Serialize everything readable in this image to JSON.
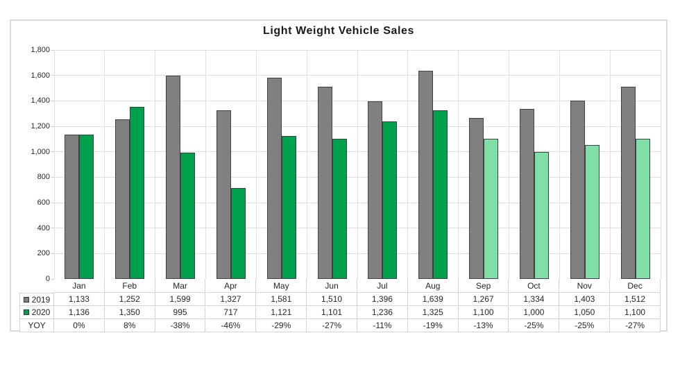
{
  "chart": {
    "border_color": "#dcdcdc",
    "grid_color": "#dedede",
    "axis_text_color": "#262626",
    "bar_border_color": "#404040"
  },
  "chart_data": {
    "type": "bar",
    "title": "Light Weight Vehicle Sales",
    "categories": [
      "Jan",
      "Feb",
      "Mar",
      "Apr",
      "May",
      "Jun",
      "Jul",
      "Aug",
      "Sep",
      "Oct",
      "Nov",
      "Dec"
    ],
    "series": [
      {
        "name": "2019",
        "color": "#808080",
        "values": [
          1133,
          1252,
          1599,
          1327,
          1581,
          1510,
          1396,
          1639,
          1267,
          1334,
          1403,
          1512
        ]
      },
      {
        "name": "2020",
        "color": "#00a14d",
        "forecast_color": "#80dfa6",
        "forecast_start_index": 8,
        "values": [
          1136,
          1350,
          995,
          717,
          1121,
          1101,
          1236,
          1325,
          1100,
          1000,
          1050,
          1100
        ]
      }
    ],
    "ylim": [
      0,
      1800
    ],
    "ytick_step": 200,
    "ytick_labels": [
      "0",
      "200",
      "400",
      "600",
      "800",
      "1,000",
      "1,200",
      "1,400",
      "1,600",
      "1,800"
    ],
    "grid": true,
    "legend_position": "table-row-headers",
    "table": {
      "row_headers": [
        {
          "label": "2019",
          "marker_color": "#808080"
        },
        {
          "label": "2020",
          "marker_color": "#00a14d"
        },
        {
          "label": "YOY",
          "marker_color": ""
        }
      ],
      "rows": [
        [
          "1,133",
          "1,252",
          "1,599",
          "1,327",
          "1,581",
          "1,510",
          "1,396",
          "1,639",
          "1,267",
          "1,334",
          "1,403",
          "1,512"
        ],
        [
          "1,136",
          "1,350",
          "995",
          "717",
          "1,121",
          "1,101",
          "1,236",
          "1,325",
          "1,100",
          "1,000",
          "1,050",
          "1,100"
        ],
        [
          "0%",
          "8%",
          "-38%",
          "-46%",
          "-29%",
          "-27%",
          "-11%",
          "-19%",
          "-13%",
          "-25%",
          "-25%",
          "-27%"
        ]
      ]
    }
  }
}
